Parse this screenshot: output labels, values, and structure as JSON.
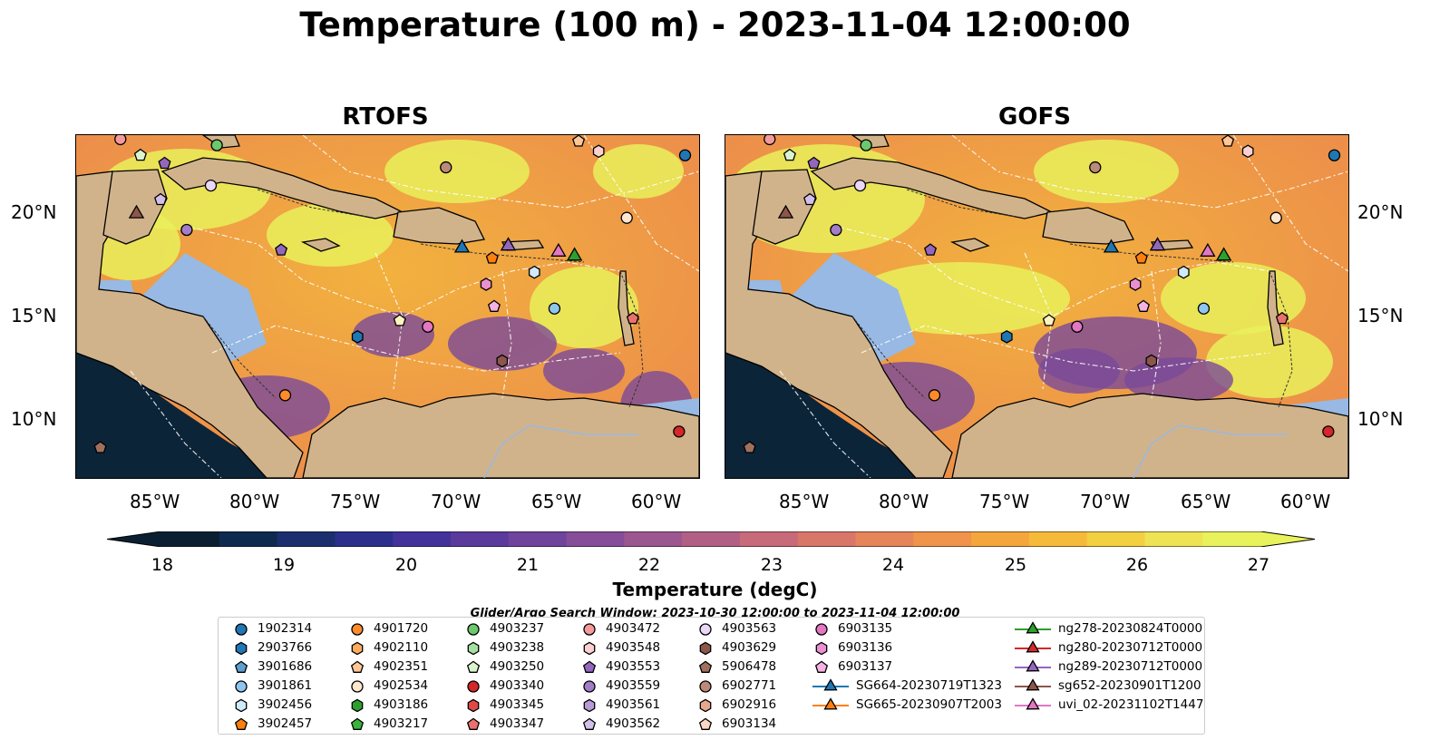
{
  "title": "Temperature (100 m) - 2023-11-04 12:00:00",
  "panels": [
    {
      "name": "RTOFS"
    },
    {
      "name": "GOFS"
    }
  ],
  "axes": {
    "lat_labels": [
      "20°N",
      "15°N",
      "10°N"
    ],
    "lon_labels": [
      "85°W",
      "80°W",
      "75°W",
      "70°W",
      "65°W",
      "60°W"
    ],
    "lon_range": [
      -89,
      -58
    ],
    "lat_range": [
      7,
      24
    ]
  },
  "colorbar": {
    "label": "Temperature (degC)",
    "ticks": [
      "18",
      "19",
      "20",
      "21",
      "22",
      "23",
      "24",
      "25",
      "26",
      "27"
    ],
    "range": [
      18,
      27
    ],
    "colors": [
      "#0b1f33",
      "#0f2a4f",
      "#1b2f6e",
      "#2a2f8c",
      "#43329a",
      "#5a3a9c",
      "#70439c",
      "#864d98",
      "#9c5690",
      "#b25f86",
      "#c76a79",
      "#d8766a",
      "#e6845a",
      "#ef944a",
      "#f4a63c",
      "#f6ba3a",
      "#f3cf42",
      "#eee354",
      "#e8f25a"
    ]
  },
  "search_window": "Glider/Argo Search Window: 2023-10-30 12:00:00 to 2023-11-04 12:00:00",
  "legend": [
    {
      "label": "1902314",
      "shape": "circle",
      "color": "#1f77b4"
    },
    {
      "label": "2903766",
      "shape": "hexagon",
      "color": "#1f77b4"
    },
    {
      "label": "3901686",
      "shape": "pentagon",
      "color": "#5f9fd0"
    },
    {
      "label": "3901861",
      "shape": "circle",
      "color": "#8fc6ee"
    },
    {
      "label": "3902456",
      "shape": "hexagon",
      "color": "#cfeaf8"
    },
    {
      "label": "3902457",
      "shape": "pentagon",
      "color": "#ff7f0e"
    },
    {
      "label": "4901720",
      "shape": "circle",
      "color": "#ff8c2a"
    },
    {
      "label": "4902110",
      "shape": "hexagon",
      "color": "#ffab5e"
    },
    {
      "label": "4902351",
      "shape": "pentagon",
      "color": "#ffc797"
    },
    {
      "label": "4902534",
      "shape": "circle",
      "color": "#ffe7cf"
    },
    {
      "label": "4903186",
      "shape": "hexagon",
      "color": "#2ca02c"
    },
    {
      "label": "4903217",
      "shape": "pentagon",
      "color": "#3ab53a"
    },
    {
      "label": "4903237",
      "shape": "circle",
      "color": "#6cc86c"
    },
    {
      "label": "4903238",
      "shape": "hexagon",
      "color": "#a6dfa0"
    },
    {
      "label": "4903250",
      "shape": "pentagon",
      "color": "#dbf4d0"
    },
    {
      "label": "4903340",
      "shape": "circle",
      "color": "#d62728"
    },
    {
      "label": "4903345",
      "shape": "hexagon",
      "color": "#e04848"
    },
    {
      "label": "4903347",
      "shape": "pentagon",
      "color": "#ea7070"
    },
    {
      "label": "4903472",
      "shape": "circle",
      "color": "#f59a9a"
    },
    {
      "label": "4903548",
      "shape": "hexagon",
      "color": "#fbd0d0"
    },
    {
      "label": "4903553",
      "shape": "pentagon",
      "color": "#9467bd"
    },
    {
      "label": "4903559",
      "shape": "circle",
      "color": "#a27ec8"
    },
    {
      "label": "4903561",
      "shape": "hexagon",
      "color": "#b79bd6"
    },
    {
      "label": "4903562",
      "shape": "pentagon",
      "color": "#d2c0ea"
    },
    {
      "label": "4903563",
      "shape": "circle",
      "color": "#ead8f8"
    },
    {
      "label": "4903629",
      "shape": "hexagon",
      "color": "#8c564b"
    },
    {
      "label": "5906478",
      "shape": "pentagon",
      "color": "#a0705f"
    },
    {
      "label": "6902771",
      "shape": "circle",
      "color": "#bb8a78"
    },
    {
      "label": "6902916",
      "shape": "hexagon",
      "color": "#e6a88f"
    },
    {
      "label": "6903134",
      "shape": "pentagon",
      "color": "#f9d6c5"
    },
    {
      "label": "6903135",
      "shape": "circle",
      "color": "#e377c2"
    },
    {
      "label": "6903136",
      "shape": "hexagon",
      "color": "#ea8fd0"
    },
    {
      "label": "6903137",
      "shape": "pentagon",
      "color": "#f4b3e2"
    },
    {
      "label": "SG664-20230719T1323",
      "shape": "triangle",
      "color": "#1f77b4"
    },
    {
      "label": "SG665-20230907T2003",
      "shape": "triangle",
      "color": "#ff7f0e"
    },
    {
      "label": "ng278-20230824T0000",
      "shape": "triangle",
      "color": "#2ca02c"
    },
    {
      "label": "ng280-20230712T0000",
      "shape": "triangle",
      "color": "#d62728"
    },
    {
      "label": "ng289-20230712T0000",
      "shape": "triangle",
      "color": "#9467bd"
    },
    {
      "label": "sg652-20230901T1200",
      "shape": "triangle",
      "color": "#8c564b"
    },
    {
      "label": "uvi_02-20231102T1447",
      "shape": "triangle",
      "color": "#e377c2"
    }
  ],
  "markers": [
    {
      "lon": -85.8,
      "lat": 23.0,
      "shape": "pentagon",
      "color": "#dbf4d0"
    },
    {
      "lon": -84.6,
      "lat": 22.6,
      "shape": "pentagon",
      "color": "#9467bd"
    },
    {
      "lon": -82.0,
      "lat": 23.5,
      "shape": "circle",
      "color": "#6cc86c"
    },
    {
      "lon": -84.8,
      "lat": 20.8,
      "shape": "pentagon",
      "color": "#d2c0ea"
    },
    {
      "lon": -82.3,
      "lat": 21.5,
      "shape": "circle",
      "color": "#ead8f8"
    },
    {
      "lon": -83.5,
      "lat": 19.3,
      "shape": "circle",
      "color": "#a27ec8"
    },
    {
      "lon": -78.8,
      "lat": 18.3,
      "shape": "pentagon",
      "color": "#9467bd"
    },
    {
      "lon": -70.6,
      "lat": 22.4,
      "shape": "circle",
      "color": "#bb8a78"
    },
    {
      "lon": -63.0,
      "lat": 23.2,
      "shape": "hexagon",
      "color": "#fbd0d0"
    },
    {
      "lon": -64.0,
      "lat": 23.7,
      "shape": "pentagon",
      "color": "#ffc797"
    },
    {
      "lon": -58.7,
      "lat": 23.0,
      "shape": "circle",
      "color": "#1f77b4"
    },
    {
      "lon": -61.6,
      "lat": 19.9,
      "shape": "circle",
      "color": "#ffe7cf"
    },
    {
      "lon": -66.2,
      "lat": 17.2,
      "shape": "hexagon",
      "color": "#cfeaf8"
    },
    {
      "lon": -68.6,
      "lat": 16.6,
      "shape": "hexagon",
      "color": "#ea8fd0"
    },
    {
      "lon": -68.2,
      "lat": 15.5,
      "shape": "pentagon",
      "color": "#f4b3e2"
    },
    {
      "lon": -65.2,
      "lat": 15.4,
      "shape": "circle",
      "color": "#8fc6ee"
    },
    {
      "lon": -68.3,
      "lat": 17.9,
      "shape": "pentagon",
      "color": "#ff7f0e"
    },
    {
      "lon": -61.3,
      "lat": 14.9,
      "shape": "pentagon",
      "color": "#ea7070"
    },
    {
      "lon": -72.9,
      "lat": 14.8,
      "shape": "pentagon",
      "color": "#fff2c0"
    },
    {
      "lon": -71.5,
      "lat": 14.5,
      "shape": "circle",
      "color": "#e377c2"
    },
    {
      "lon": -75.0,
      "lat": 14.0,
      "shape": "hexagon",
      "color": "#1f77b4"
    },
    {
      "lon": -67.8,
      "lat": 12.8,
      "shape": "hexagon",
      "color": "#8c564b"
    },
    {
      "lon": -78.6,
      "lat": 11.1,
      "shape": "circle",
      "color": "#ff8c2a"
    },
    {
      "lon": -59.0,
      "lat": 9.3,
      "shape": "circle",
      "color": "#d62728"
    },
    {
      "lon": -87.8,
      "lat": 8.5,
      "shape": "pentagon",
      "color": "#a0705f"
    },
    {
      "lon": -86.8,
      "lat": 23.8,
      "shape": "circle",
      "color": "#f59a9a"
    }
  ],
  "gliders": [
    {
      "lon": -86.0,
      "lat": 20.1,
      "color": "#8c564b"
    },
    {
      "lon": -69.8,
      "lat": 18.4,
      "color": "#1f77b4"
    },
    {
      "lon": -67.5,
      "lat": 18.5,
      "color": "#9467bd"
    },
    {
      "lon": -65.0,
      "lat": 18.2,
      "color": "#e377c2"
    },
    {
      "lon": -64.2,
      "lat": 18.0,
      "color": "#2ca02c"
    }
  ]
}
